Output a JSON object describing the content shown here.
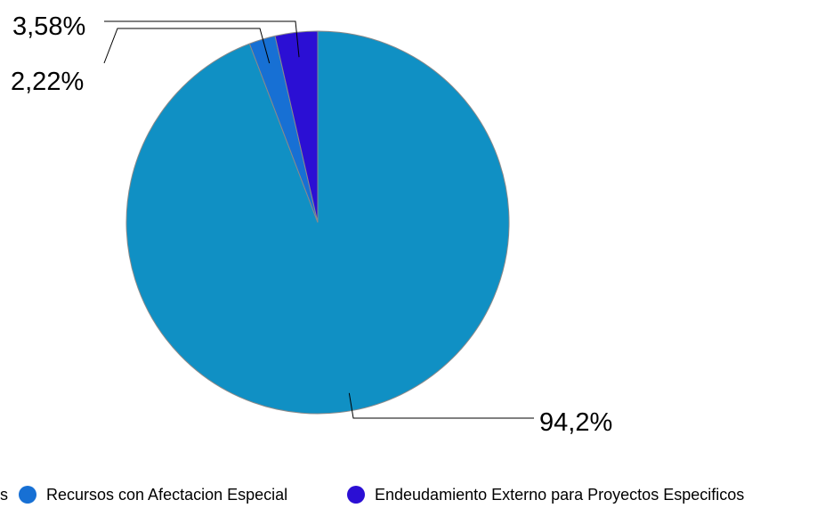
{
  "chart_data": {
    "type": "pie",
    "title": "",
    "slices": [
      {
        "label": "Recursos Ordinarios",
        "value": 94.2,
        "display": "94,2%",
        "color": "#1090c4"
      },
      {
        "label": "Recursos con Afectacion Especial",
        "value": 2.22,
        "display": "2,22%",
        "color": "#1770d4"
      },
      {
        "label": "Endeudamiento Externo para Proyectos Especificos",
        "value": 3.58,
        "display": "3,58%",
        "color": "#2b0fd4"
      }
    ],
    "legend_position": "bottom",
    "legend_visible_text": [
      "s",
      "Recursos con Afectacion Especial",
      "Endeudamiento Externo para Proyectos Especificos"
    ]
  }
}
